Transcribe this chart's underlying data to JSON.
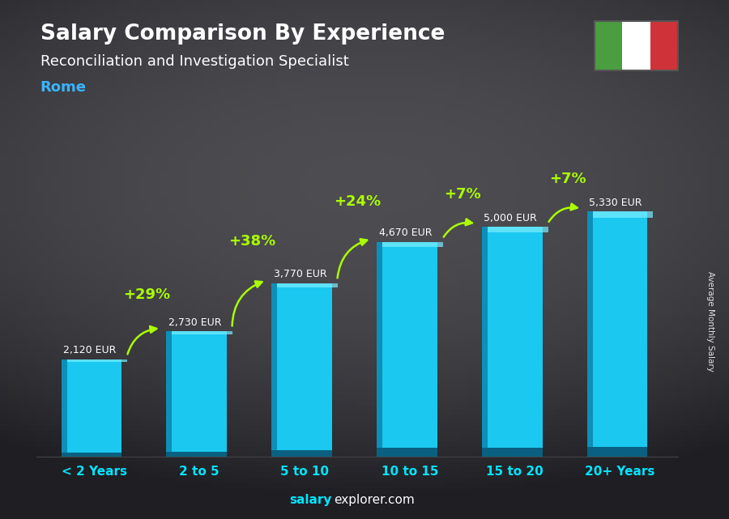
{
  "title": "Salary Comparison By Experience",
  "subtitle": "Reconciliation and Investigation Specialist",
  "city": "Rome",
  "sidebar_label": "Average Monthly Salary",
  "categories": [
    "< 2 Years",
    "2 to 5",
    "5 to 10",
    "10 to 15",
    "15 to 20",
    "20+ Years"
  ],
  "values": [
    2120,
    2730,
    3770,
    4670,
    5000,
    5330
  ],
  "value_labels": [
    "2,120 EUR",
    "2,730 EUR",
    "3,770 EUR",
    "4,670 EUR",
    "5,000 EUR",
    "5,330 EUR"
  ],
  "pct_labels": [
    "+29%",
    "+38%",
    "+24%",
    "+7%",
    "+7%"
  ],
  "bar_face_color": "#1ac8f0",
  "bar_left_color": "#0d8fb8",
  "bar_highlight_color": "#7aeeff",
  "bar_bottom_color": "#0a6080",
  "title_color": "#ffffff",
  "subtitle_color": "#ffffff",
  "city_color": "#3ab4ff",
  "pct_color": "#aaff00",
  "value_label_color": "#ffffff",
  "cat_label_color": "#00e5ff",
  "watermark_salary_color": "#00e5ff",
  "watermark_rest_color": "#ffffff",
  "watermark_salary": "salary",
  "watermark_rest": "explorer.com",
  "bg_color": "#1a1a2e",
  "ylim": [
    0,
    6200
  ],
  "flag_green": "#4a9e3f",
  "flag_white": "#ffffff",
  "flag_red": "#cf3339",
  "arrow_color": "#aaff00"
}
